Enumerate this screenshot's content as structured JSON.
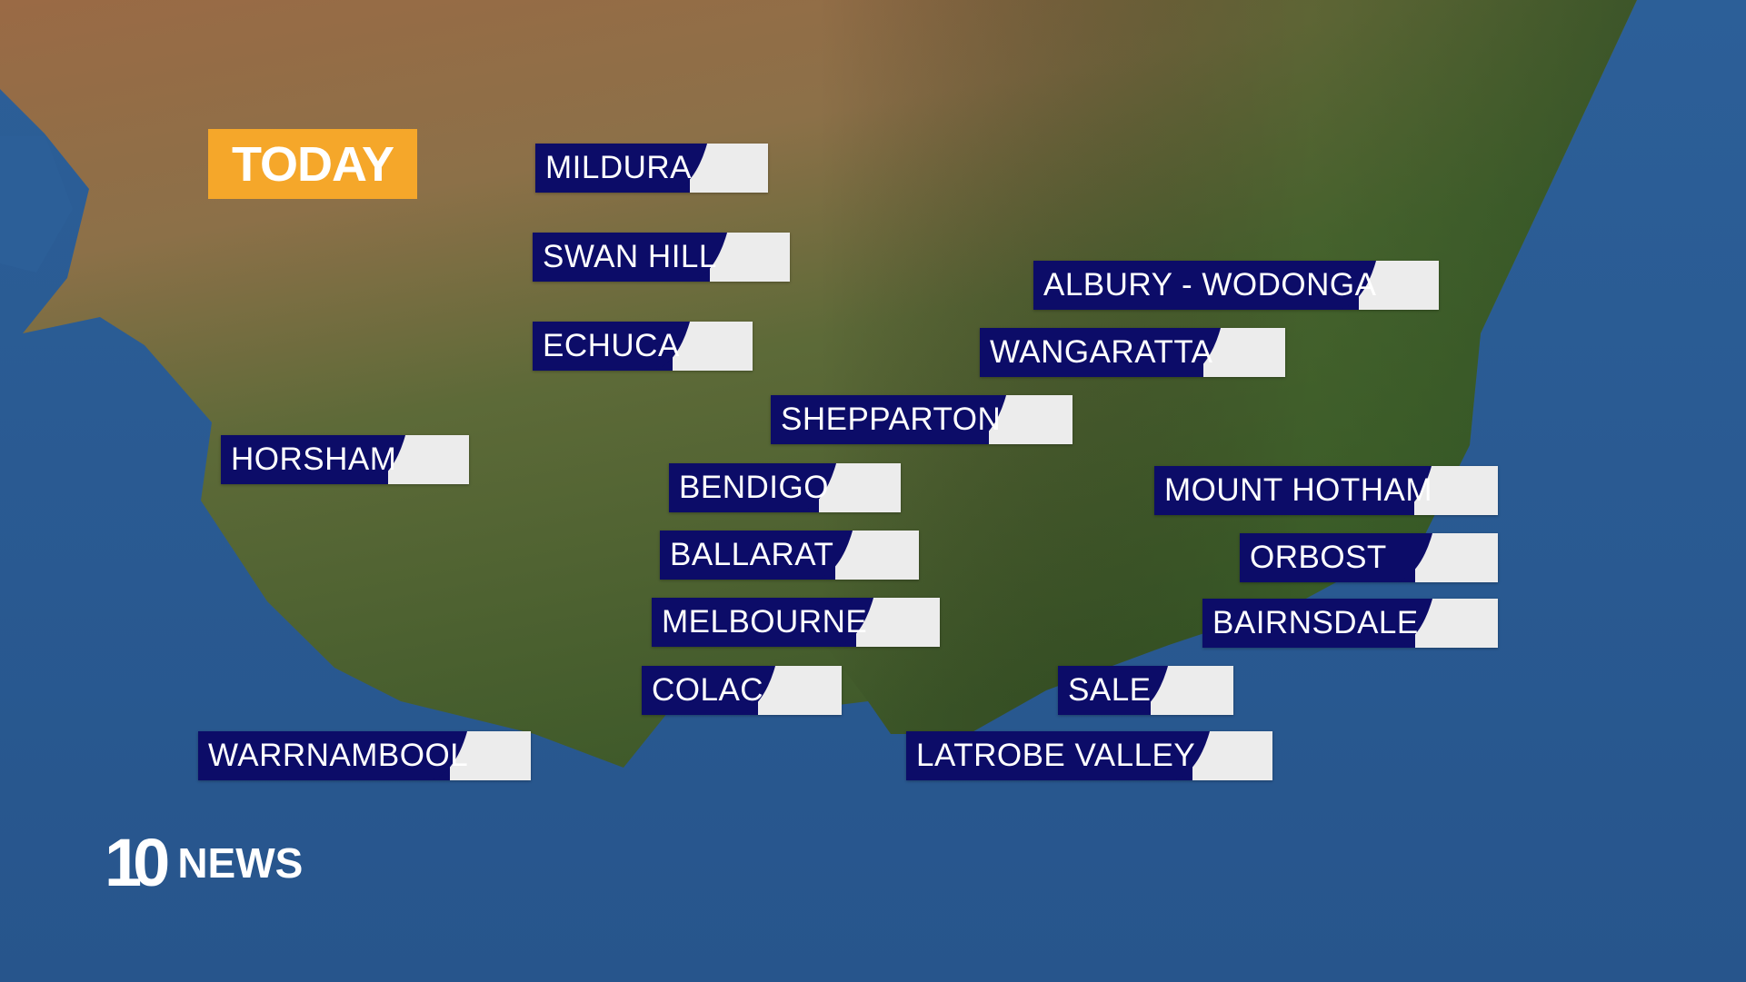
{
  "header": {
    "day_label": "TODAY"
  },
  "colors": {
    "ocean": "#2a5a92",
    "label_bg": "#0c0c68",
    "accent": "#f5a72a",
    "value_box": "#ececec"
  },
  "locations": [
    {
      "name": "MILDURA"
    },
    {
      "name": "SWAN HILL"
    },
    {
      "name": "ECHUCA"
    },
    {
      "name": "HORSHAM"
    },
    {
      "name": "ALBURY - WODONGA"
    },
    {
      "name": "WANGARATTA"
    },
    {
      "name": "SHEPPARTON"
    },
    {
      "name": "BENDIGO"
    },
    {
      "name": "BALLARAT"
    },
    {
      "name": "MELBOURNE"
    },
    {
      "name": "COLAC"
    },
    {
      "name": "WARRNAMBOOL"
    },
    {
      "name": "MOUNT HOTHAM"
    },
    {
      "name": "ORBOST"
    },
    {
      "name": "BAIRNSDALE"
    },
    {
      "name": "SALE"
    },
    {
      "name": "LATROBE VALLEY"
    }
  ],
  "logo": {
    "number": "10",
    "text": "NEWS"
  }
}
